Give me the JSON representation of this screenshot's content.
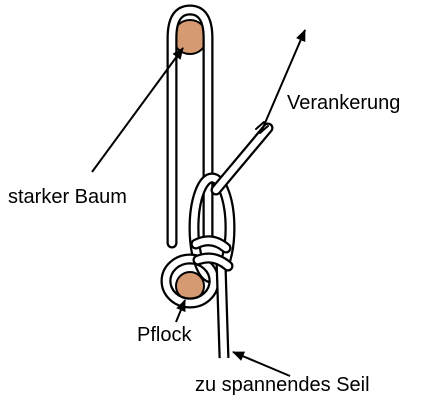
{
  "labels": {
    "tree": "starker Baum",
    "anchor": "Verankerung",
    "peg": "Pflock",
    "rope": "zu spannendes Seil"
  },
  "colors": {
    "wood": "#d69a72",
    "line": "#000000",
    "background": "#ffffff"
  }
}
